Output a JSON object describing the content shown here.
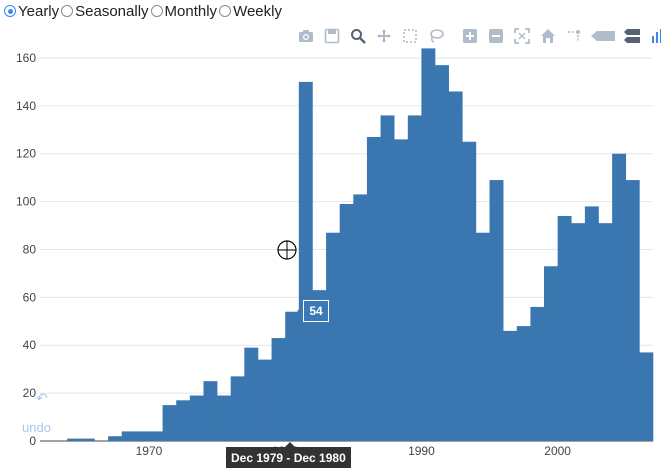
{
  "controls": {
    "options": [
      {
        "label": "Yearly",
        "checked": true
      },
      {
        "label": "Seasonally",
        "checked": false
      },
      {
        "label": "Monthly",
        "checked": false
      },
      {
        "label": "Weekly",
        "checked": false
      }
    ]
  },
  "modebar": {
    "icons": [
      "camera-icon",
      "save-icon",
      "zoom-icon",
      "pan-icon",
      "box-select-icon",
      "lasso-icon",
      "zoom-in-icon",
      "zoom-out-icon",
      "autoscale-icon",
      "home-icon",
      "spikelines-icon",
      "hover-closest-icon",
      "hover-compare-icon",
      "plotly-logo-icon"
    ],
    "color": "#b0bccb"
  },
  "undo": {
    "label": "undo"
  },
  "hover": {
    "value": "54",
    "x_range": "Dec 1979 - Dec 1980"
  },
  "colors": {
    "bar": "#3a77b1",
    "grid": "#e6e6e6",
    "accent": "#3b86f7"
  },
  "chart_data": {
    "type": "bar",
    "xlim": [
      1962,
      2007
    ],
    "ylim": [
      0,
      165
    ],
    "xticks": [
      1970,
      1980,
      1990,
      2000
    ],
    "yticks": [
      0,
      20,
      40,
      60,
      80,
      100,
      120,
      140,
      160
    ],
    "bin_width": 1,
    "x_start": [
      1962,
      1963,
      1964,
      1965,
      1966,
      1967,
      1968,
      1969,
      1970,
      1971,
      1972,
      1973,
      1974,
      1975,
      1976,
      1977,
      1978,
      1979,
      1980,
      1981,
      1982,
      1983,
      1984,
      1985,
      1986,
      1987,
      1988,
      1989,
      1990,
      1991,
      1992,
      1993,
      1994,
      1995,
      1996,
      1997,
      1998,
      1999,
      2000,
      2001,
      2002,
      2003,
      2004,
      2005,
      2006
    ],
    "values": [
      0,
      0,
      1,
      1,
      0,
      2,
      4,
      4,
      4,
      15,
      17,
      19,
      25,
      19,
      27,
      39,
      34,
      43,
      54,
      150,
      63,
      87,
      99,
      103,
      127,
      136,
      126,
      136,
      164,
      157,
      146,
      125,
      87,
      109,
      46,
      48,
      56,
      73,
      94,
      91,
      98,
      91,
      120,
      109,
      37
    ]
  }
}
